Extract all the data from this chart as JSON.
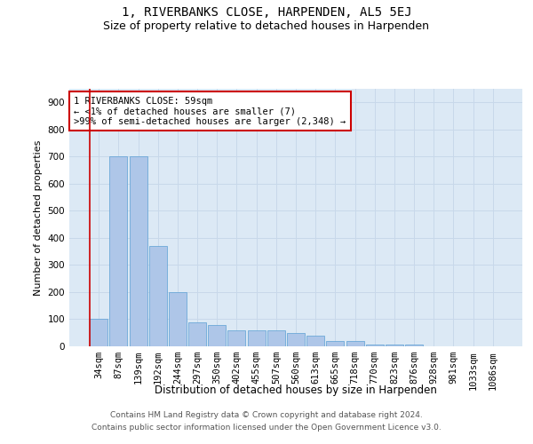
{
  "title": "1, RIVERBANKS CLOSE, HARPENDEN, AL5 5EJ",
  "subtitle": "Size of property relative to detached houses in Harpenden",
  "xlabel": "Distribution of detached houses by size in Harpenden",
  "ylabel": "Number of detached properties",
  "categories": [
    "34sqm",
    "87sqm",
    "139sqm",
    "192sqm",
    "244sqm",
    "297sqm",
    "350sqm",
    "402sqm",
    "455sqm",
    "507sqm",
    "560sqm",
    "613sqm",
    "665sqm",
    "718sqm",
    "770sqm",
    "823sqm",
    "876sqm",
    "928sqm",
    "981sqm",
    "1033sqm",
    "1086sqm"
  ],
  "values": [
    100,
    700,
    700,
    370,
    200,
    90,
    80,
    60,
    60,
    60,
    50,
    40,
    20,
    20,
    5,
    5,
    5,
    0,
    0,
    0,
    0
  ],
  "bar_color": "#aec6e8",
  "bar_edge_color": "#5a9fd4",
  "annotation_box_text": "1 RIVERBANKS CLOSE: 59sqm\n← <1% of detached houses are smaller (7)\n>99% of semi-detached houses are larger (2,348) →",
  "annotation_box_color": "#ffffff",
  "annotation_box_edge_color": "#cc0000",
  "annotation_text_fontsize": 7.5,
  "title_fontsize": 10,
  "subtitle_fontsize": 9,
  "xlabel_fontsize": 8.5,
  "ylabel_fontsize": 8,
  "tick_fontsize": 7.5,
  "ylim": [
    0,
    950
  ],
  "yticks": [
    0,
    100,
    200,
    300,
    400,
    500,
    600,
    700,
    800,
    900
  ],
  "grid_color": "#c8d8ea",
  "background_color": "#dce9f5",
  "footer_line1": "Contains HM Land Registry data © Crown copyright and database right 2024.",
  "footer_line2": "Contains public sector information licensed under the Open Government Licence v3.0.",
  "footer_fontsize": 6.5
}
